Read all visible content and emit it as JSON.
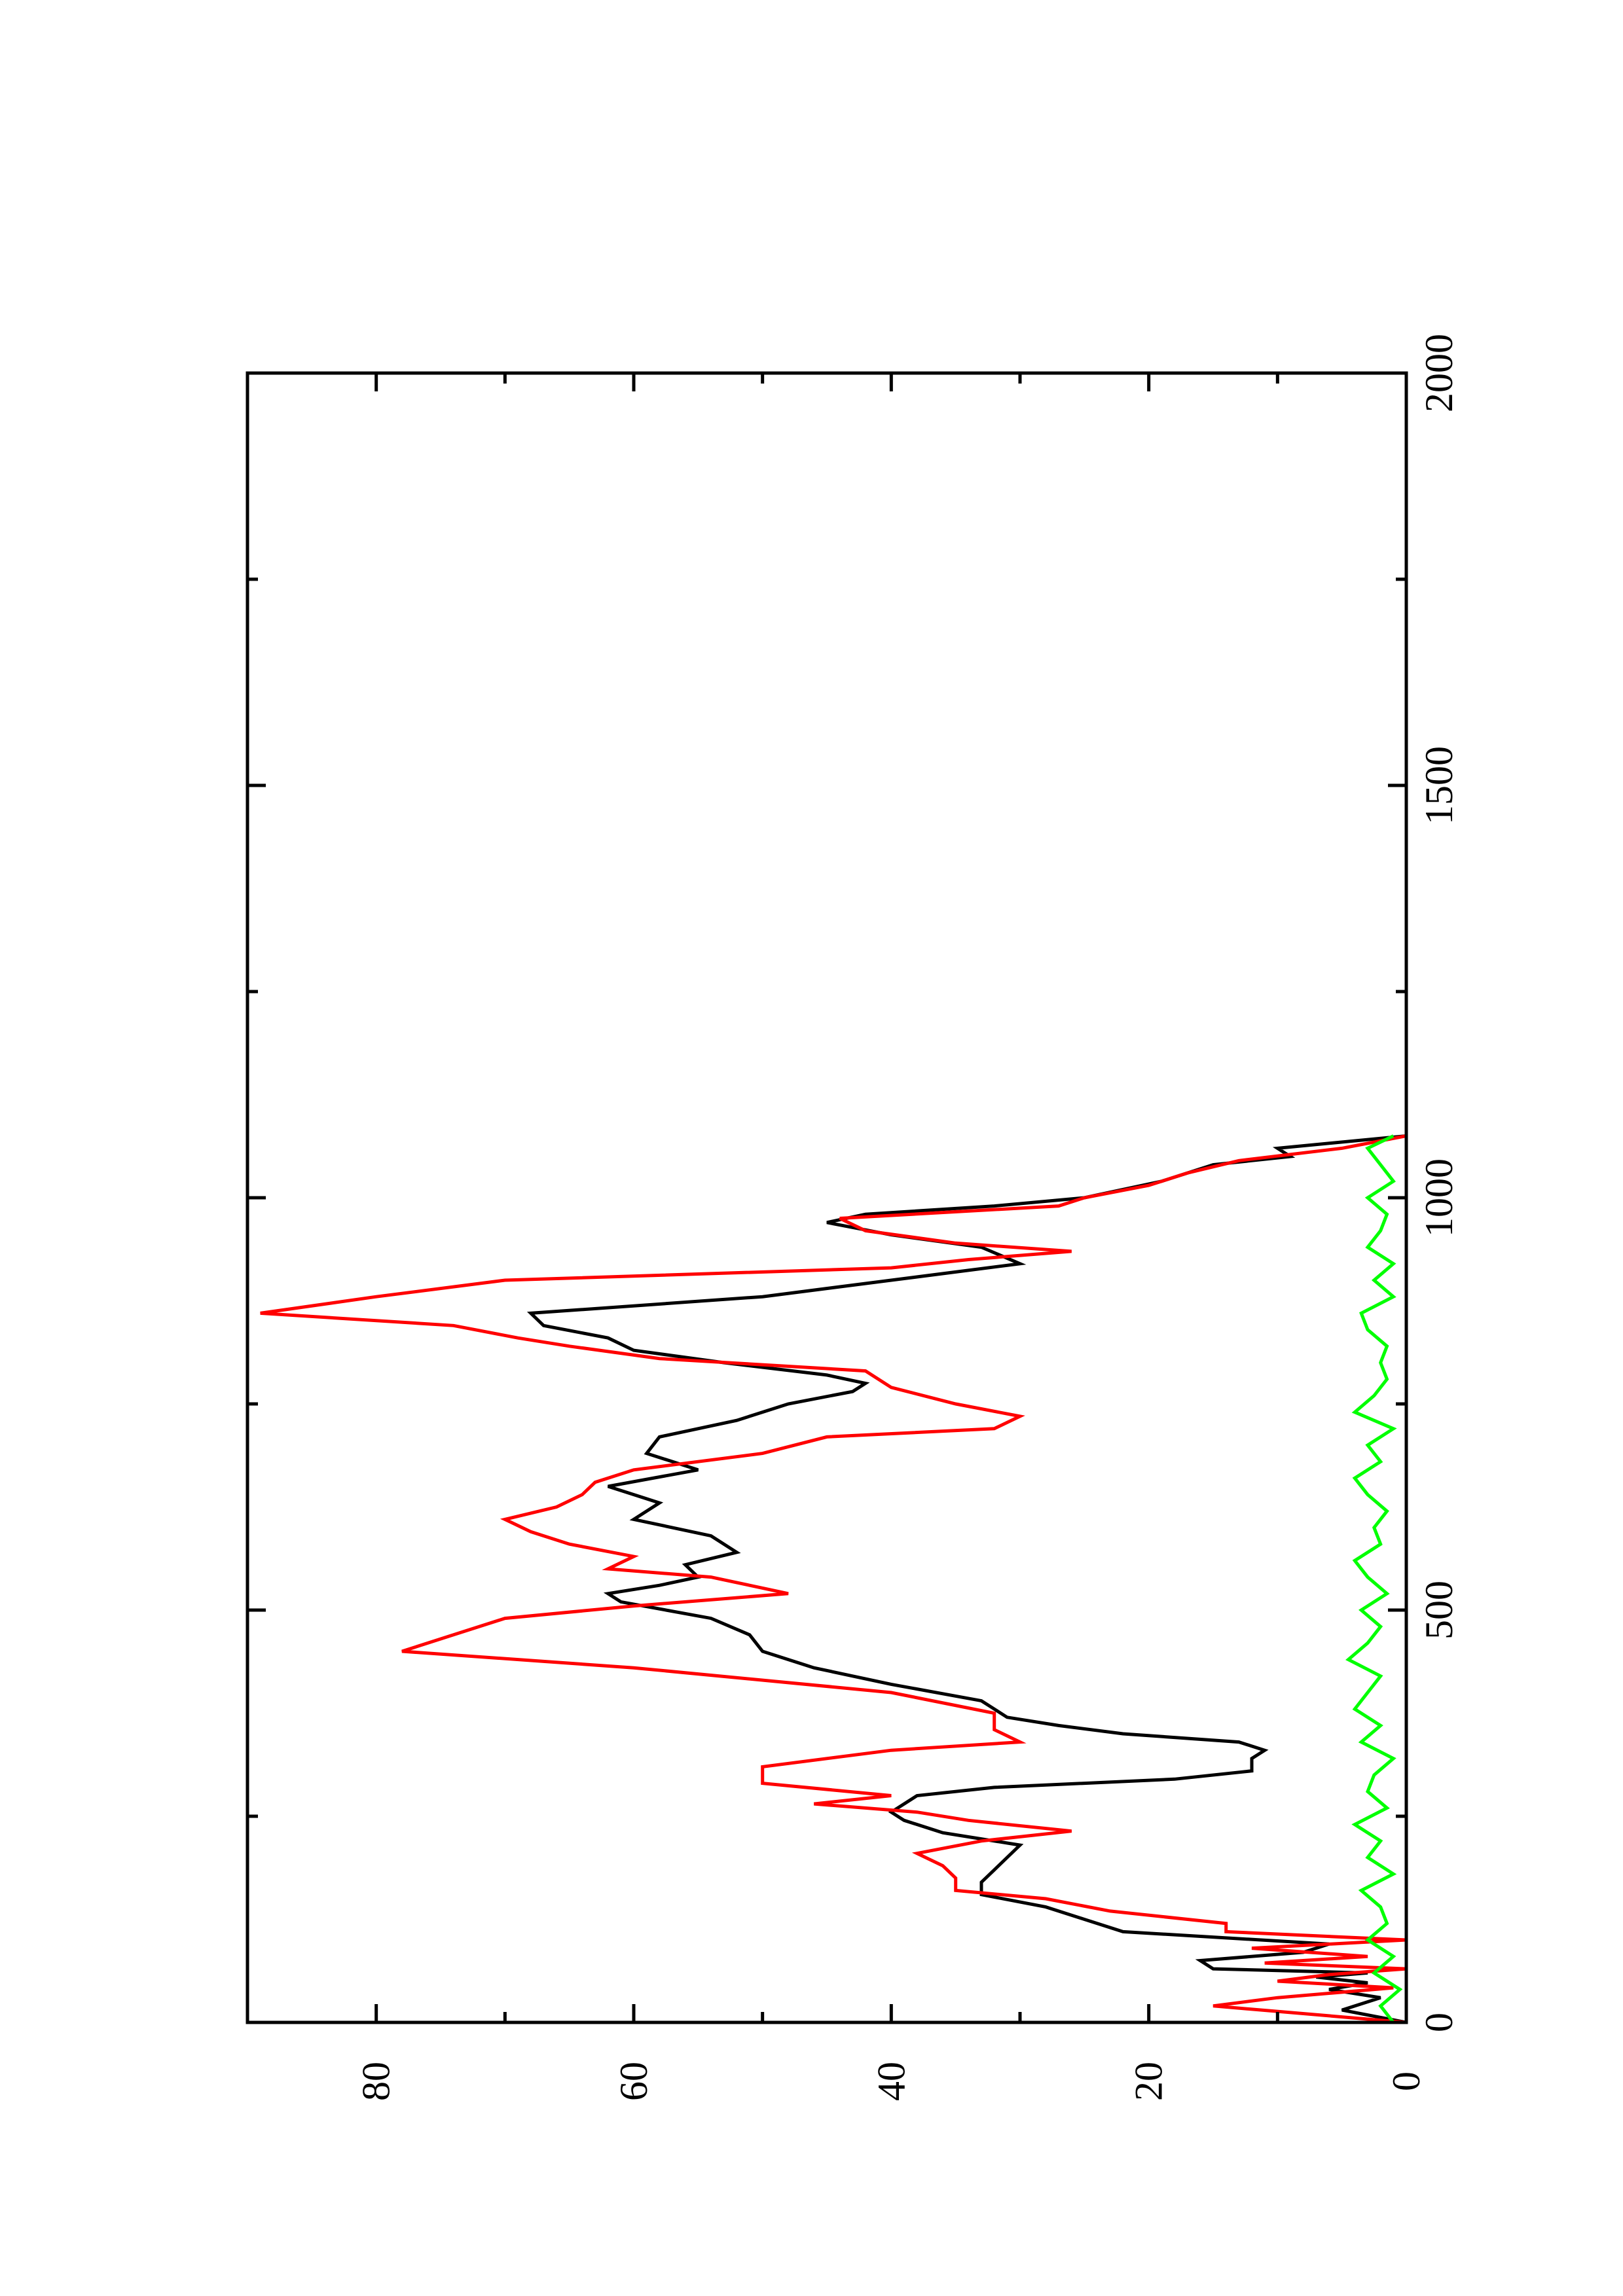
{
  "chart_data": {
    "type": "line",
    "orientation": "rotated-90-ccw",
    "title": "",
    "xlabel": "",
    "ylabel": "",
    "xlim": [
      0,
      2000
    ],
    "ylim": [
      0,
      90
    ],
    "x_major_ticks": [
      0,
      500,
      1000,
      1500,
      2000
    ],
    "x_minor_ticks": [
      250,
      750,
      1250,
      1750
    ],
    "y_major_ticks": [
      0,
      20,
      40,
      60,
      80
    ],
    "y_minor_ticks": [
      10,
      30,
      50,
      70
    ],
    "grid": false,
    "legend": "none",
    "series": [
      {
        "color": "#000000",
        "x": [
          0,
          15,
          30,
          40,
          48,
          55,
          60,
          65,
          75,
          85,
          95,
          110,
          125,
          140,
          155,
          170,
          185,
          200,
          215,
          230,
          245,
          255,
          265,
          275,
          285,
          295,
          305,
          320,
          330,
          340,
          350,
          360,
          370,
          380,
          390,
          410,
          430,
          450,
          470,
          490,
          510,
          520,
          530,
          540,
          555,
          570,
          590,
          610,
          630,
          650,
          670,
          690,
          710,
          730,
          750,
          765,
          775,
          785,
          800,
          815,
          830,
          845,
          860,
          880,
          900,
          920,
          940,
          955,
          970,
          980,
          990,
          1000,
          1020,
          1040,
          1050,
          1060,
          1075
        ],
        "y": [
          0,
          5,
          2,
          6,
          3,
          7,
          3,
          15,
          16,
          8,
          6,
          22,
          25,
          28,
          33,
          33,
          32,
          31,
          30,
          36,
          39,
          40,
          39,
          38,
          32,
          18,
          12,
          12,
          11,
          13,
          22,
          27,
          31,
          32,
          33,
          40,
          46,
          50,
          51,
          54,
          61,
          62,
          58,
          55,
          56,
          52,
          54,
          60,
          58,
          62,
          55,
          59,
          58,
          52,
          48,
          43,
          42,
          45,
          53,
          60,
          62,
          67,
          68,
          50,
          40,
          30,
          33,
          40,
          45,
          42,
          32,
          25,
          19,
          15,
          9,
          10,
          0
        ]
      },
      {
        "color": "#ff0000",
        "x": [
          0,
          20,
          30,
          42,
          50,
          58,
          65,
          72,
          80,
          90,
          100,
          110,
          120,
          135,
          150,
          160,
          175,
          190,
          205,
          220,
          232,
          245,
          255,
          265,
          275,
          290,
          310,
          330,
          340,
          355,
          375,
          400,
          430,
          450,
          470,
          490,
          505,
          520,
          530,
          540,
          550,
          565,
          580,
          595,
          610,
          625,
          640,
          655,
          670,
          690,
          710,
          720,
          735,
          750,
          770,
          790,
          805,
          820,
          830,
          845,
          860,
          880,
          900,
          915,
          925,
          935,
          945,
          960,
          975,
          990,
          1000,
          1015,
          1030,
          1045,
          1060,
          1075
        ],
        "y": [
          0,
          15,
          10,
          1,
          10,
          6,
          0,
          11,
          3,
          12,
          0,
          14,
          14,
          23,
          28,
          35,
          35,
          36,
          38,
          33,
          26,
          34,
          38,
          46,
          40,
          50,
          50,
          40,
          30,
          32,
          32,
          40,
          60,
          78,
          74,
          70,
          60,
          48,
          51,
          54,
          62,
          60,
          65,
          68,
          70,
          66,
          64,
          63,
          60,
          50,
          45,
          32,
          30,
          35,
          40,
          42,
          58,
          65,
          69,
          74,
          89,
          80,
          70,
          40,
          34,
          26,
          35,
          42,
          44,
          27,
          25,
          20,
          17,
          13,
          5,
          0
        ]
      },
      {
        "color": "#00ff00",
        "x": [
          0,
          20,
          40,
          60,
          80,
          100,
          120,
          140,
          160,
          180,
          200,
          220,
          240,
          260,
          280,
          300,
          320,
          340,
          360,
          380,
          400,
          420,
          440,
          460,
          480,
          500,
          520,
          540,
          560,
          580,
          600,
          620,
          640,
          660,
          680,
          700,
          720,
          740,
          760,
          780,
          800,
          820,
          840,
          860,
          880,
          900,
          920,
          940,
          960,
          980,
          1000,
          1020,
          1040,
          1060,
          1075
        ],
        "y": [
          1,
          2,
          0.5,
          2.5,
          1,
          3,
          1.5,
          2,
          3.5,
          1,
          3,
          2,
          4,
          1.5,
          3,
          2.5,
          1,
          3.5,
          2,
          4,
          3,
          2,
          4.5,
          3,
          2,
          3.5,
          1.5,
          3,
          4,
          2,
          2.5,
          1.5,
          3,
          4,
          2,
          3,
          1,
          4,
          2.5,
          1.5,
          2,
          1.5,
          3,
          3.5,
          1,
          2.5,
          1,
          3,
          2,
          1.5,
          3,
          1,
          2,
          3,
          1
        ]
      }
    ]
  }
}
